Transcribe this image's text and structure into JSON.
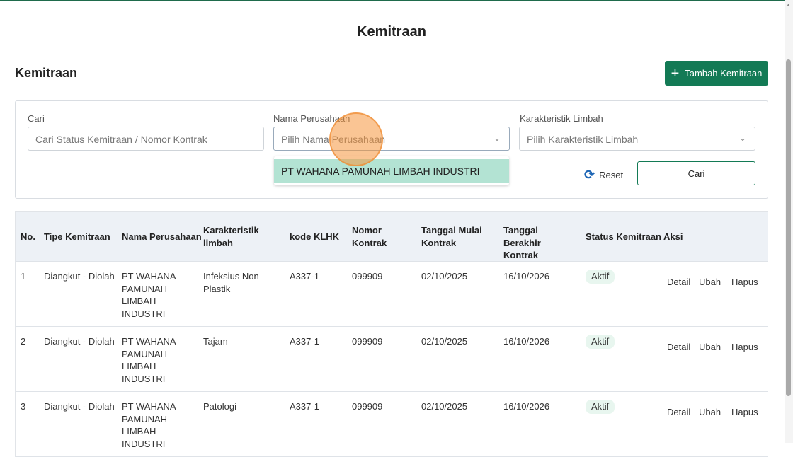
{
  "page": {
    "title": "Kemitraan",
    "section_title": "Kemitraan",
    "add_button": "Tambah Kemitraan"
  },
  "filters": {
    "search": {
      "label": "Cari",
      "placeholder": "Cari Status Kemitraan / Nomor Kontrak"
    },
    "company": {
      "label": "Nama Perusahaan",
      "placeholder": "Pilih Nama Perusahaan",
      "options": [
        "PT WAHANA PAMUNAH LIMBAH INDUSTRI"
      ]
    },
    "waste": {
      "label": "Karakteristik Limbah",
      "placeholder": "Pilih Karakteristik Limbah"
    },
    "reset": "Reset",
    "search_button": "Cari"
  },
  "table": {
    "headers": [
      "No.",
      "Tipe Kemitraan",
      "Nama Perusahaan",
      "Karakteristik limbah",
      "kode KLHK",
      "Nomor Kontrak",
      "Tanggal Mulai Kontrak",
      "Tanggal Berakhir Kontrak",
      "Status Kemitraan",
      "Aksi"
    ],
    "actions": {
      "detail": "Detail",
      "edit": "Ubah",
      "delete": "Hapus"
    },
    "rows": [
      {
        "no": "1",
        "type": "Diangkut - Diolah",
        "company": "PT WAHANA PAMUNAH LIMBAH INDUSTRI",
        "waste": "Infeksius Non Plastik",
        "klhk": "A337-1",
        "contract": "099909",
        "start": "02/10/2025",
        "end": "16/10/2026",
        "status": "Aktif"
      },
      {
        "no": "2",
        "type": "Diangkut - Diolah",
        "company": "PT WAHANA PAMUNAH LIMBAH INDUSTRI",
        "waste": "Tajam",
        "klhk": "A337-1",
        "contract": "099909",
        "start": "02/10/2025",
        "end": "16/10/2026",
        "status": "Aktif"
      },
      {
        "no": "3",
        "type": "Diangkut - Diolah",
        "company": "PT WAHANA PAMUNAH LIMBAH INDUSTRI",
        "waste": "Patologi",
        "klhk": "A337-1",
        "contract": "099909",
        "start": "02/10/2025",
        "end": "16/10/2026",
        "status": "Aktif"
      }
    ]
  },
  "colors": {
    "primary": "#137a55",
    "link": "#1e66b5",
    "danger": "#d9534f",
    "active_badge": "#2aa06a"
  }
}
